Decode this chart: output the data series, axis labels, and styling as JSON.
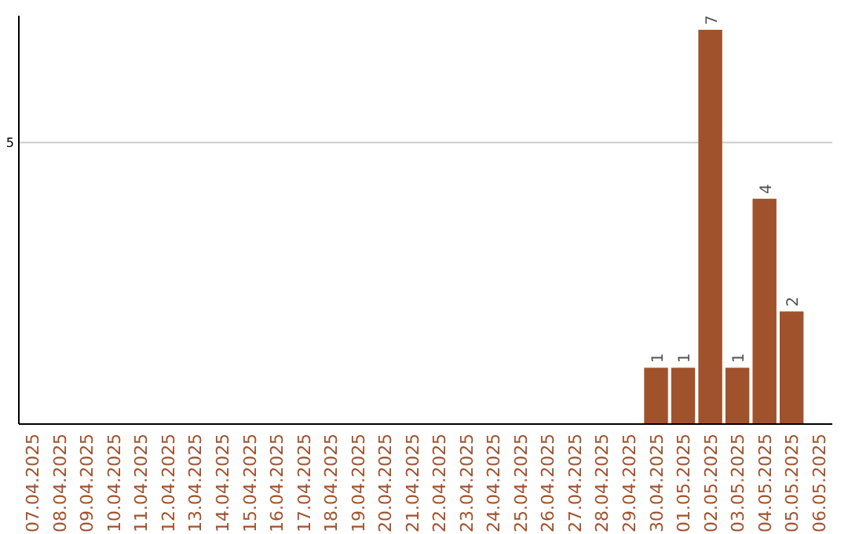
{
  "chart_data": {
    "type": "bar",
    "categories": [
      "07.04.2025",
      "08.04.2025",
      "09.04.2025",
      "10.04.2025",
      "11.04.2025",
      "12.04.2025",
      "13.04.2025",
      "14.04.2025",
      "15.04.2025",
      "16.04.2025",
      "17.04.2025",
      "18.04.2025",
      "19.04.2025",
      "20.04.2025",
      "21.04.2025",
      "22.04.2025",
      "23.04.2025",
      "24.04.2025",
      "25.04.2025",
      "26.04.2025",
      "27.04.2025",
      "28.04.2025",
      "29.04.2025",
      "30.04.2025",
      "01.05.2025",
      "02.05.2025",
      "03.05.2025",
      "04.05.2025",
      "05.05.2025",
      "06.05.2025"
    ],
    "values": [
      null,
      null,
      null,
      null,
      null,
      null,
      null,
      null,
      null,
      null,
      null,
      null,
      null,
      null,
      null,
      null,
      null,
      null,
      null,
      null,
      null,
      null,
      null,
      1,
      1,
      7,
      1,
      4,
      2,
      null
    ],
    "data_labels": true,
    "color": "#a0522d",
    "ylim": [
      0,
      7.25
    ],
    "yticks": [
      5
    ],
    "grid": "y"
  }
}
